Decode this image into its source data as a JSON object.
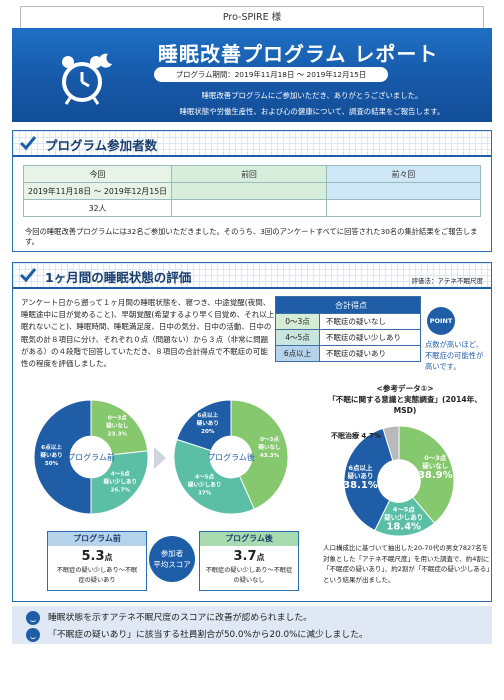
{
  "header": {
    "company": "Pro-SPIRE 様",
    "title": "睡眠改善プログラム レポート",
    "period": "プログラム期間：2019年11月18日 ～ 2019年12月15日",
    "line1": "睡眠改善プログラムにご参加いただき、ありがとうございました。",
    "line2": "睡眠状態や労働生産性、および心の健康について、調査の結果をご報告します。"
  },
  "section1": {
    "title": "プログラム参加者数",
    "columns": [
      "今回",
      "前回",
      "前々回"
    ],
    "period": "2019年11月18日 ～ 2019年12月15日",
    "count": "32人",
    "note": "今回の睡眠改善プログラムには32名ご参加いただきました。そのうち、3回のアンケートすべてに回答された30名の集計結果をご報告します。"
  },
  "section2": {
    "title": "1ヶ月間の睡眠状態の評価",
    "note": "評価法：アテネ不眠尺度",
    "intro": "アンケート日から遡って１ヶ月間の睡眠状態を、寝つき、中途覚醒(夜間、睡眠途中に目が覚めること)、早朝覚醒(希望するより早く目覚め、それ以上眠れないこと)、睡眠時間、睡眠満足度、日中の気分、日中の活動、日中の眠気の計８項目に分け、それぞれ０点（問題ない）から３点（非常に問題がある）の４段階で回答していただき、８項目の合計得点で不眠症の可能性の程度を評価しました。",
    "score_table": {
      "header": "合計得点",
      "rows": [
        {
          "range": "0～3点",
          "label": "不眠症の疑いなし"
        },
        {
          "range": "4～5点",
          "label": "不眠症の疑い少しあり"
        },
        {
          "range": "6点以上",
          "label": "不眠症の疑いあり"
        }
      ]
    },
    "point": {
      "badge": "POINT",
      "lines": [
        "点数が高いほど、",
        "不眠症の可能性が",
        "高いです。"
      ]
    },
    "before_label": "プログラム前",
    "after_label": "プログラム後",
    "avg_label": [
      "参加者",
      "平均スコア"
    ],
    "before_score": "5.3",
    "after_score": "3.7",
    "score_unit": "点",
    "before_desc": [
      "不眠症の疑い少しあり～不眠",
      "症の疑いあり"
    ],
    "after_desc": [
      "不眠症の疑い少しあり～不眠症",
      "の疑いなし"
    ],
    "ref_title": [
      "<参考データ①>",
      "「不眠に関する意識と実態調査」(2014年、MSD)"
    ],
    "ref_note": "人口構成比に基づいて抽出した20-70代の男女7827名を対象とした「アテネ不眠尺度」を用いた調査で、約4割に「不眠症の疑いあり」、約2割が「不眠症の疑い少しある」という結果が出ました。"
  },
  "chart_data": [
    {
      "type": "pie",
      "title": "プログラム前",
      "categories": [
        "0～3点 疑いなし",
        "4～5点 疑い少しあり",
        "6点以上 疑いあり"
      ],
      "values": [
        23.3,
        26.7,
        50
      ],
      "labels": [
        "0～3点\n疑いなし\n23.3%",
        "4～5点\n疑い少しあり\n26.7%",
        "6点以上\n疑いあり\n50%"
      ]
    },
    {
      "type": "pie",
      "title": "プログラム後",
      "categories": [
        "0～3点 疑いなし",
        "4～5点 疑い少しあり",
        "6点以上 疑いあり"
      ],
      "values": [
        43.3,
        36.7,
        20
      ],
      "labels": [
        "0～3点\n疑いなし\n43.3%",
        "4～5点\n疑い少しあり\n37%",
        "6点以上\n疑いあり\n20%"
      ]
    },
    {
      "type": "pie",
      "title": "",
      "categories": [
        "0～3点 疑いなし",
        "4～5点 疑い少しあり",
        "6点以上 疑いあり",
        "不眠治療"
      ],
      "values": [
        38.9,
        18.4,
        38.1,
        4.7
      ],
      "labels": [
        "0～3点\n疑いなし\n38.9%",
        "4～5点\n疑い少しあり\n18.4%",
        "6点以上\n疑いあり\n38.1%",
        "不眠治療 4.7%"
      ]
    }
  ],
  "colors": {
    "green": "#86c86d",
    "teal": "#5bbfa5",
    "navy": "#1f5ea7",
    "gray": "#b9b9b9"
  },
  "summary": [
    "睡眠状態を示すアテネ不眠尺度のスコアに改善が認められました。",
    "「不眠症の疑いあり」に該当する社員割合が50.0%から20.0%に減少しました。"
  ]
}
